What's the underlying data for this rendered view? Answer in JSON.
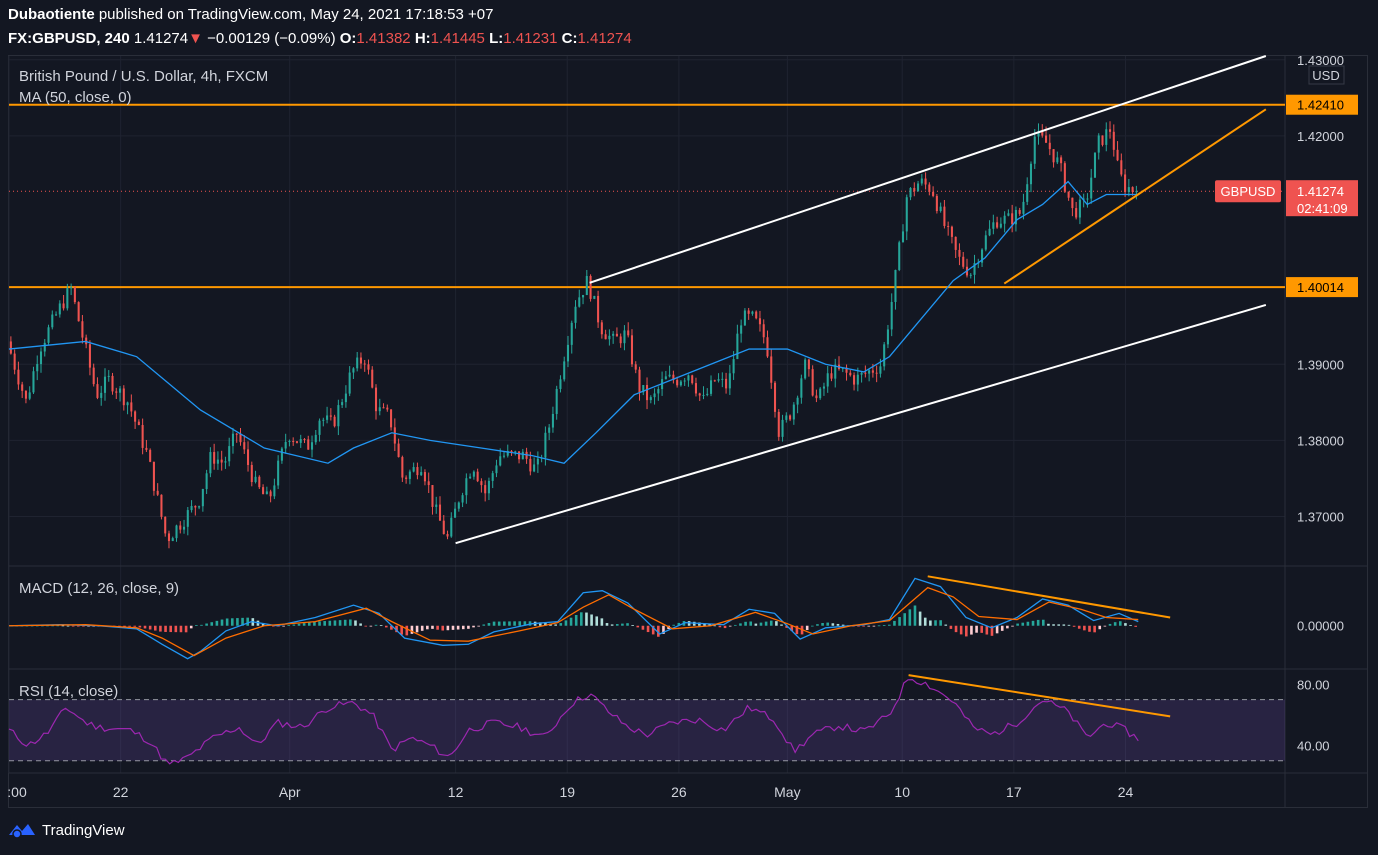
{
  "header": {
    "author": "Dubaotiente",
    "published_text": "published on TradingView.com, May 24, 2021 17:18:53 +07",
    "symbol": "FX:GBPUSD, 240",
    "last": "1.41274",
    "change_arrow": "▼",
    "change": "−0.00129 (−0.09%)",
    "o_label": "O:",
    "o_value": "1.41382",
    "h_label": "H:",
    "h_value": "1.41445",
    "l_label": "L:",
    "l_value": "1.41231",
    "c_label": "C:",
    "c_value": "1.41274"
  },
  "colors": {
    "background": "#131722",
    "up": "#26a69a",
    "down": "#ef5350",
    "ma": "#2196f3",
    "orange": "#ff9800",
    "rsi": "#9c27b0",
    "white": "#ffffff"
  },
  "chart_data": [
    {
      "type": "candlestick",
      "title": "British Pound / U.S. Dollar, 4h, FXCM",
      "indicator_label": "MA (50, close, 0)",
      "currency": "USD",
      "symbol_tag": "GBPUSD",
      "ylim": [
        1.3635,
        1.4305
      ],
      "yticks": [
        "1.43000",
        "1.42000",
        "1.39000",
        "1.38000",
        "1.37000"
      ],
      "xlim": [
        0,
        100
      ],
      "xticks": [
        {
          "x": 0.0,
          "label": ":00"
        },
        {
          "x": 8.75,
          "label": "22"
        },
        {
          "x": 22.0,
          "label": "Apr"
        },
        {
          "x": 35.0,
          "label": "12"
        },
        {
          "x": 43.75,
          "label": "19"
        },
        {
          "x": 52.5,
          "label": "26"
        },
        {
          "x": 61.0,
          "label": "May"
        },
        {
          "x": 70.0,
          "label": "10"
        },
        {
          "x": 78.75,
          "label": "17"
        },
        {
          "x": 87.5,
          "label": "24"
        }
      ],
      "current": {
        "value": 1.41274,
        "label": "1.41274",
        "countdown": "02:41:09"
      },
      "levels": [
        {
          "value": 1.4241,
          "label": "1.42410"
        },
        {
          "value": 1.40014,
          "label": "1.40014"
        }
      ],
      "price_path": [
        [
          0,
          1.393
        ],
        [
          1.5,
          1.385
        ],
        [
          2.5,
          1.392
        ],
        [
          4,
          1.397
        ],
        [
          5,
          1.4
        ],
        [
          6,
          1.393
        ],
        [
          7,
          1.386
        ],
        [
          8,
          1.388
        ],
        [
          9.5,
          1.385
        ],
        [
          11,
          1.378
        ],
        [
          12.5,
          1.367
        ],
        [
          13.5,
          1.369
        ],
        [
          15,
          1.372
        ],
        [
          16,
          1.378
        ],
        [
          17,
          1.377
        ],
        [
          18,
          1.381
        ],
        [
          19.5,
          1.374
        ],
        [
          20.5,
          1.372
        ],
        [
          22,
          1.381
        ],
        [
          23.5,
          1.379
        ],
        [
          24.5,
          1.383
        ],
        [
          25.5,
          1.382
        ],
        [
          27,
          1.389
        ],
        [
          28,
          1.391
        ],
        [
          29,
          1.384
        ],
        [
          30,
          1.383
        ],
        [
          31,
          1.375
        ],
        [
          32.5,
          1.377
        ],
        [
          33.5,
          1.371
        ],
        [
          34.5,
          1.367
        ],
        [
          35.5,
          1.373
        ],
        [
          36.5,
          1.377
        ],
        [
          37.5,
          1.373
        ],
        [
          38.5,
          1.378
        ],
        [
          39.5,
          1.378
        ],
        [
          40.5,
          1.378
        ],
        [
          41.5,
          1.376
        ],
        [
          42.5,
          1.382
        ],
        [
          43.5,
          1.39
        ],
        [
          44.5,
          1.398
        ],
        [
          45.5,
          1.401
        ],
        [
          46.5,
          1.395
        ],
        [
          47.5,
          1.393
        ],
        [
          48.5,
          1.394
        ],
        [
          49.5,
          1.387
        ],
        [
          50.5,
          1.385
        ],
        [
          51.5,
          1.388
        ],
        [
          52.5,
          1.388
        ],
        [
          53.5,
          1.389
        ],
        [
          54.5,
          1.385
        ],
        [
          55.5,
          1.388
        ],
        [
          56.5,
          1.387
        ],
        [
          57.5,
          1.396
        ],
        [
          58.5,
          1.396
        ],
        [
          59.5,
          1.393
        ],
        [
          60.5,
          1.381
        ],
        [
          61.5,
          1.384
        ],
        [
          62.5,
          1.39
        ],
        [
          63.5,
          1.385
        ],
        [
          64.5,
          1.389
        ],
        [
          65.5,
          1.389
        ],
        [
          66.5,
          1.388
        ],
        [
          67.5,
          1.389
        ],
        [
          68.5,
          1.39
        ],
        [
          69.5,
          1.4
        ],
        [
          70.5,
          1.412
        ],
        [
          71.5,
          1.414
        ],
        [
          72.5,
          1.413
        ],
        [
          73.5,
          1.408
        ],
        [
          74.5,
          1.404
        ],
        [
          75.5,
          1.402
        ],
        [
          76.5,
          1.406
        ],
        [
          77.5,
          1.409
        ],
        [
          78.5,
          1.409
        ],
        [
          79.5,
          1.41
        ],
        [
          80.5,
          1.42
        ],
        [
          81.5,
          1.419
        ],
        [
          82.5,
          1.416
        ],
        [
          83.5,
          1.41
        ],
        [
          84.5,
          1.411
        ],
        [
          85.5,
          1.419
        ],
        [
          86.5,
          1.421
        ],
        [
          87,
          1.416
        ],
        [
          87.5,
          1.4135
        ],
        [
          88.5,
          1.4127
        ]
      ],
      "ma_path": [
        [
          0,
          1.392
        ],
        [
          6,
          1.393
        ],
        [
          10,
          1.391
        ],
        [
          15,
          1.384
        ],
        [
          20,
          1.379
        ],
        [
          25,
          1.377
        ],
        [
          27,
          1.379
        ],
        [
          30,
          1.381
        ],
        [
          33,
          1.38
        ],
        [
          37,
          1.379
        ],
        [
          41,
          1.378
        ],
        [
          43.5,
          1.377
        ],
        [
          46,
          1.381
        ],
        [
          49,
          1.386
        ],
        [
          52,
          1.388
        ],
        [
          55,
          1.39
        ],
        [
          58,
          1.392
        ],
        [
          61,
          1.392
        ],
        [
          64,
          1.39
        ],
        [
          67,
          1.389
        ],
        [
          69,
          1.391
        ],
        [
          71,
          1.395
        ],
        [
          74,
          1.401
        ],
        [
          76.5,
          1.404
        ],
        [
          79,
          1.409
        ],
        [
          81,
          1.411
        ],
        [
          83,
          1.414
        ],
        [
          84.5,
          1.411
        ],
        [
          86,
          1.4123
        ],
        [
          88.5,
          1.4123
        ]
      ],
      "channel_lines": [
        {
          "color": "white",
          "from": [
            45.5,
            1.4007
          ],
          "to": [
            98.5,
            1.4305
          ]
        },
        {
          "color": "white",
          "from": [
            35,
            1.3665
          ],
          "to": [
            98.5,
            1.3978
          ]
        },
        {
          "color": "orange",
          "from": [
            78,
            1.4006
          ],
          "to": [
            98.5,
            1.4235
          ]
        }
      ]
    },
    {
      "type": "line",
      "title": "MACD (12, 26, close, 9)",
      "ylim": [
        -0.0042,
        0.0058
      ],
      "yticks": [
        "0.00000"
      ],
      "macd": [
        [
          0,
          0
        ],
        [
          4,
          0.0001
        ],
        [
          7,
          0.0
        ],
        [
          10,
          -0.0003
        ],
        [
          12,
          -0.0018
        ],
        [
          14,
          -0.0032
        ],
        [
          15,
          -0.0025
        ],
        [
          17,
          -0.0005
        ],
        [
          19,
          0.0004
        ],
        [
          21,
          0.0
        ],
        [
          24,
          0.0008
        ],
        [
          27,
          0.002
        ],
        [
          29,
          0.0012
        ],
        [
          31,
          -0.0012
        ],
        [
          34,
          -0.0019
        ],
        [
          36,
          -0.0018
        ],
        [
          38,
          -0.0006
        ],
        [
          41,
          0.0002
        ],
        [
          43,
          0.0004
        ],
        [
          45,
          0.0032
        ],
        [
          46.5,
          0.0034
        ],
        [
          48.5,
          0.0022
        ],
        [
          51,
          -0.0008
        ],
        [
          53,
          0.0003
        ],
        [
          56,
          0.0001
        ],
        [
          58,
          0.0016
        ],
        [
          60,
          0.0012
        ],
        [
          62,
          -0.0013
        ],
        [
          64,
          -0.0002
        ],
        [
          67,
          0.0001
        ],
        [
          69,
          0.0006
        ],
        [
          71,
          0.0046
        ],
        [
          73,
          0.0038
        ],
        [
          75,
          0.0008
        ],
        [
          77,
          -0.0002
        ],
        [
          79,
          0.0008
        ],
        [
          81,
          0.0026
        ],
        [
          83,
          0.002
        ],
        [
          85,
          0.0005
        ],
        [
          87,
          0.0012
        ],
        [
          88.5,
          0.0004
        ]
      ],
      "signal": [
        [
          0,
          0
        ],
        [
          6,
          0.0001
        ],
        [
          10,
          -0.0002
        ],
        [
          12,
          -0.0012
        ],
        [
          14.5,
          -0.0029
        ],
        [
          17,
          -0.0012
        ],
        [
          20,
          0.0
        ],
        [
          24,
          0.0004
        ],
        [
          28,
          0.0017
        ],
        [
          30,
          0.0004
        ],
        [
          33,
          -0.0014
        ],
        [
          36,
          -0.0015
        ],
        [
          40,
          -0.0005
        ],
        [
          43,
          0.0003
        ],
        [
          45,
          0.0018
        ],
        [
          47,
          0.003
        ],
        [
          49,
          0.0016
        ],
        [
          52,
          -0.0003
        ],
        [
          55,
          0.0
        ],
        [
          58.5,
          0.0013
        ],
        [
          61,
          0.0002
        ],
        [
          63,
          -0.0008
        ],
        [
          66,
          0.0
        ],
        [
          69,
          0.0005
        ],
        [
          72,
          0.0037
        ],
        [
          74,
          0.0028
        ],
        [
          76,
          0.0009
        ],
        [
          79,
          0.0006
        ],
        [
          81.5,
          0.0023
        ],
        [
          84,
          0.0016
        ],
        [
          86,
          0.0008
        ],
        [
          88.5,
          0.0006
        ]
      ],
      "trend_line": {
        "from": [
          72,
          0.0048
        ],
        "to": [
          91,
          0.0008
        ]
      }
    },
    {
      "type": "line",
      "title": "RSI (14, close)",
      "ylim": [
        22,
        90
      ],
      "yticks": [
        "80.00",
        "40.00"
      ],
      "band": [
        30,
        70
      ],
      "rsi": [
        [
          0,
          50
        ],
        [
          1.5,
          40
        ],
        [
          3,
          48
        ],
        [
          4.5,
          65
        ],
        [
          6,
          55
        ],
        [
          7,
          52
        ],
        [
          9.5,
          50
        ],
        [
          11,
          43
        ],
        [
          12.5,
          27
        ],
        [
          14,
          32
        ],
        [
          16,
          45
        ],
        [
          18,
          52
        ],
        [
          19.5,
          40
        ],
        [
          21,
          55
        ],
        [
          23,
          52
        ],
        [
          25,
          65
        ],
        [
          27,
          68
        ],
        [
          28.5,
          60
        ],
        [
          30,
          37
        ],
        [
          31.5,
          45
        ],
        [
          33,
          40
        ],
        [
          34.5,
          32
        ],
        [
          36,
          50
        ],
        [
          38,
          55
        ],
        [
          40,
          52
        ],
        [
          42,
          45
        ],
        [
          44,
          67
        ],
        [
          45.5,
          74
        ],
        [
          47,
          62
        ],
        [
          48.5,
          52
        ],
        [
          50,
          47
        ],
        [
          52,
          55
        ],
        [
          54,
          57
        ],
        [
          56,
          50
        ],
        [
          58,
          65
        ],
        [
          60,
          57
        ],
        [
          61.5,
          36
        ],
        [
          63,
          47
        ],
        [
          65,
          53
        ],
        [
          67,
          49
        ],
        [
          69,
          60
        ],
        [
          70.5,
          85
        ],
        [
          72,
          80
        ],
        [
          74,
          69
        ],
        [
          75.5,
          52
        ],
        [
          77,
          47
        ],
        [
          79,
          55
        ],
        [
          81,
          70
        ],
        [
          83,
          62
        ],
        [
          84.5,
          45
        ],
        [
          86,
          55
        ],
        [
          87.5,
          50
        ],
        [
          88.5,
          44
        ]
      ],
      "trend_line": {
        "from": [
          70.5,
          86
        ],
        "to": [
          91,
          59
        ]
      }
    }
  ],
  "footer": {
    "brand": "TradingView"
  }
}
